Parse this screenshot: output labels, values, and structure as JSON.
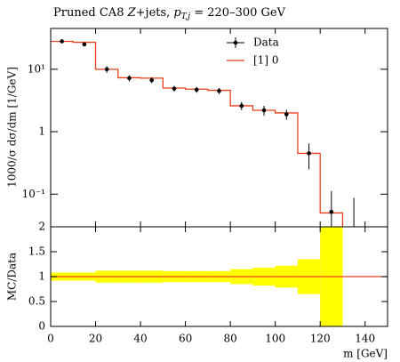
{
  "chart_data": {
    "type": "histogram",
    "title": [
      "Pruned CA8 ",
      "Z",
      "+jets, ",
      "p",
      "T,j",
      " = 220–300 GeV"
    ],
    "y_label": "1000/σ dσ/dm [1/GeV]",
    "x_label": "m [GeV]",
    "ratio_label": "MC/Data",
    "xlim": [
      0,
      150
    ],
    "xticks": [
      0,
      20,
      40,
      60,
      80,
      100,
      120,
      140
    ],
    "ylim": [
      0.03,
      45
    ],
    "log_y": true,
    "yticks": [
      {
        "value": 0.1,
        "label": "10⁻¹"
      },
      1,
      {
        "value": 10,
        "label": "10¹"
      }
    ],
    "legend": "upper right",
    "data": {
      "name": "Data",
      "color": "#000000",
      "x": [
        5,
        15,
        25,
        35,
        45,
        55,
        65,
        75,
        85,
        95,
        105,
        115,
        125,
        135
      ],
      "values": [
        28,
        25,
        10,
        7.2,
        6.7,
        4.9,
        4.7,
        4.5,
        2.6,
        2.2,
        1.9,
        0.45,
        0.052,
        0
      ],
      "errors": [
        1.5,
        1.2,
        1.2,
        0.8,
        0.7,
        0.5,
        0.5,
        0.5,
        0.4,
        0.4,
        0.35,
        0.2,
        0.06,
        0.087
      ]
    },
    "mc": {
      "name": "[1] 0",
      "color": "#e8401c",
      "bins": [
        0,
        10,
        20,
        30,
        40,
        50,
        60,
        70,
        80,
        90,
        100,
        110,
        120,
        130
      ],
      "values": [
        28,
        27,
        10,
        7.3,
        7.2,
        5,
        4.8,
        4.6,
        2.6,
        2.2,
        2,
        0.45,
        0.05
      ]
    },
    "ratio": {
      "ylim": [
        0,
        2
      ],
      "yticks": [
        0,
        0.5,
        1,
        1.5,
        2
      ],
      "line": 1,
      "band_color": "#ffff00",
      "band_bins": [
        0,
        10,
        20,
        30,
        40,
        50,
        60,
        70,
        80,
        90,
        100,
        110,
        120,
        130
      ],
      "band_errors": [
        0.08,
        0.08,
        0.12,
        0.12,
        0.12,
        0.11,
        0.11,
        0.11,
        0.15,
        0.18,
        0.22,
        0.35,
        1.2
      ]
    }
  }
}
